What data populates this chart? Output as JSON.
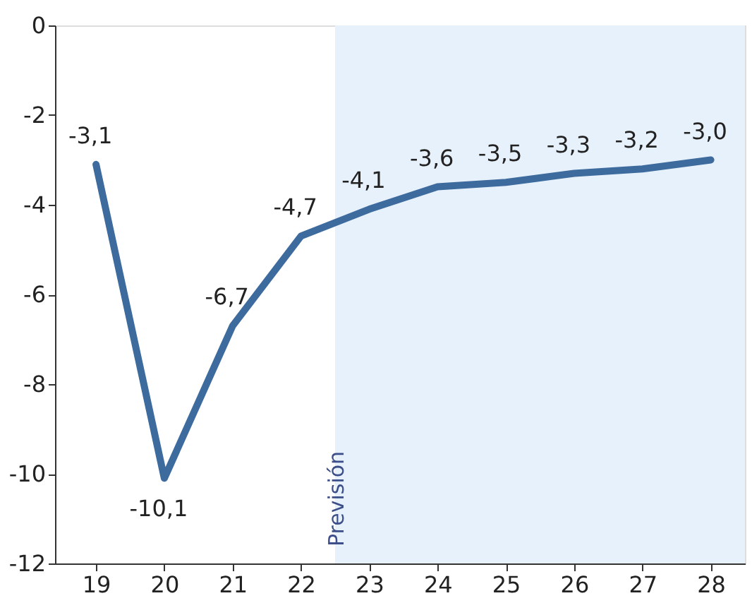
{
  "chart_data": {
    "type": "line",
    "categories": [
      "19",
      "20",
      "21",
      "22",
      "23",
      "24",
      "25",
      "26",
      "27",
      "28"
    ],
    "series": [
      {
        "color": "#3d6b9e",
        "values": [
          -3.1,
          -10.1,
          -6.7,
          -4.7,
          -4.1,
          -3.6,
          -3.5,
          -3.3,
          -3.2,
          -3.0
        ],
        "value_labels": [
          "-3,1",
          "-10,1",
          "-6,7",
          "-4,7",
          "-4,1",
          "-3,6",
          "-3,5",
          "-3,3",
          "-3,2",
          "-3,0"
        ]
      }
    ],
    "ylim": [
      -12,
      0
    ],
    "yticks": [
      -12,
      -10,
      -8,
      -6,
      -4,
      -2,
      0
    ],
    "bands": [
      {
        "axis": "x",
        "from": "23",
        "to": "28",
        "label": "Previsión",
        "color": "#e7f1fb"
      }
    ],
    "grid": false,
    "marker": "none",
    "line_style": "solid"
  }
}
